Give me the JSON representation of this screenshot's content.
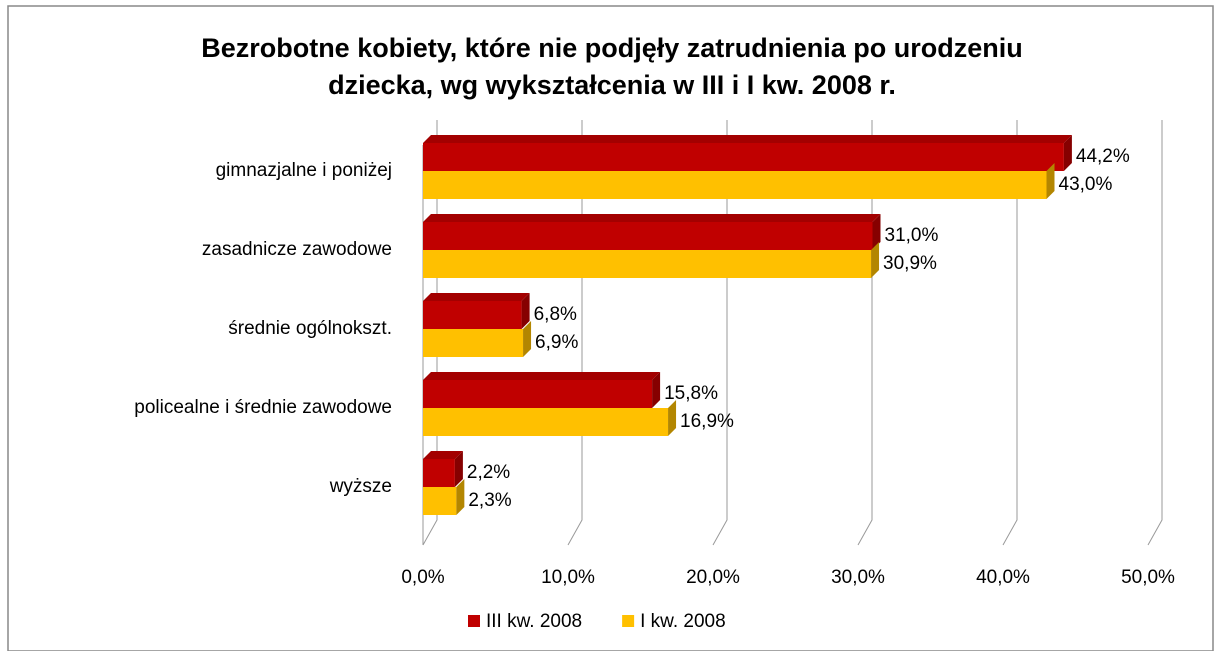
{
  "chart_data": {
    "type": "bar",
    "orientation": "horizontal",
    "title": [
      "Bezrobotne kobiety, które nie podjęły zatrudnienia po urodzeniu",
      "dziecka, wg wykształcenia w III i I kw. 2008 r."
    ],
    "categories": [
      "gimnazjalne i poniżej",
      "zasadnicze zawodowe",
      "średnie ogólnokszt.",
      "policealne i średnie zawodowe",
      "wyższe"
    ],
    "series": [
      {
        "name": "III kw. 2008",
        "color": "#c00000",
        "values": [
          44.2,
          31.0,
          6.8,
          15.8,
          2.2
        ],
        "value_labels": [
          "44,2%",
          "31,0%",
          "6,8%",
          "15,8%",
          "2,2%"
        ]
      },
      {
        "name": "I kw. 2008",
        "color": "#ffc000",
        "values": [
          43.0,
          30.9,
          6.9,
          16.9,
          2.3
        ],
        "value_labels": [
          "43,0%",
          "30,9%",
          "6,9%",
          "16,9%",
          "2,3%"
        ]
      }
    ],
    "xlim": [
      0,
      50
    ],
    "xticks": [
      {
        "value": 0,
        "label": "0,0%"
      },
      {
        "value": 10,
        "label": "10,0%"
      },
      {
        "value": 20,
        "label": "20,0%"
      },
      {
        "value": 30,
        "label": "30,0%"
      },
      {
        "value": 40,
        "label": "40,0%"
      },
      {
        "value": 50,
        "label": "50,0%"
      }
    ],
    "grid": true,
    "legend": "bottom"
  }
}
